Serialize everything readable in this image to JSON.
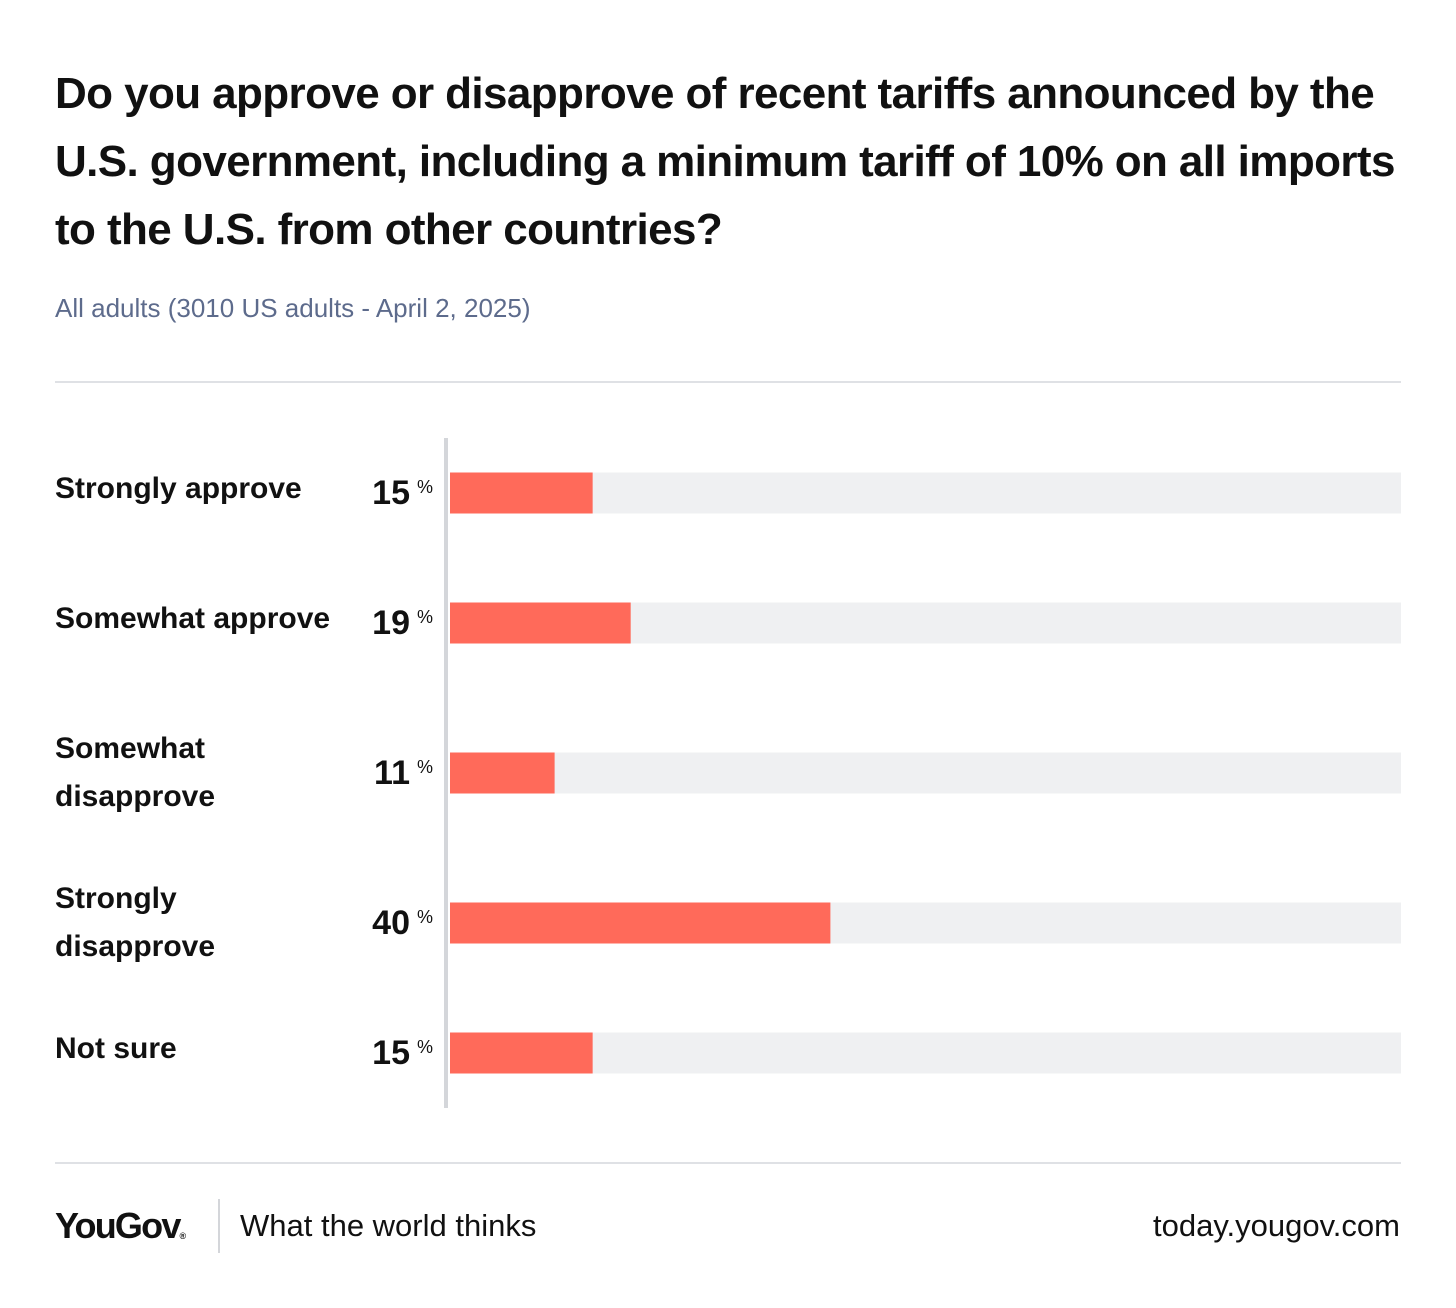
{
  "title": "Do you approve or disapprove of recent tariffs announced by the U.S. government, including a minimum tariff of 10% on all imports to the U.S. from other countries?",
  "subtitle": "All adults (3010 US adults - April 2, 2025)",
  "colors": {
    "bar": "#ff6a5a",
    "track": "#eff0f2",
    "axis": "#d4d6da",
    "subtitle": "#5d6b8c"
  },
  "chart_data": {
    "type": "bar",
    "orientation": "horizontal",
    "categories": [
      "Strongly approve",
      "Somewhat approve",
      "Somewhat disapprove",
      "Strongly disapprove",
      "Not sure"
    ],
    "values": [
      15,
      19,
      11,
      40,
      15
    ],
    "value_suffix": "%",
    "xlim": [
      0,
      100
    ],
    "grid": false
  },
  "footer": {
    "brand": "YouGov",
    "brand_mark": "®",
    "tagline": "What the world thinks",
    "site": "today.yougov.com"
  }
}
